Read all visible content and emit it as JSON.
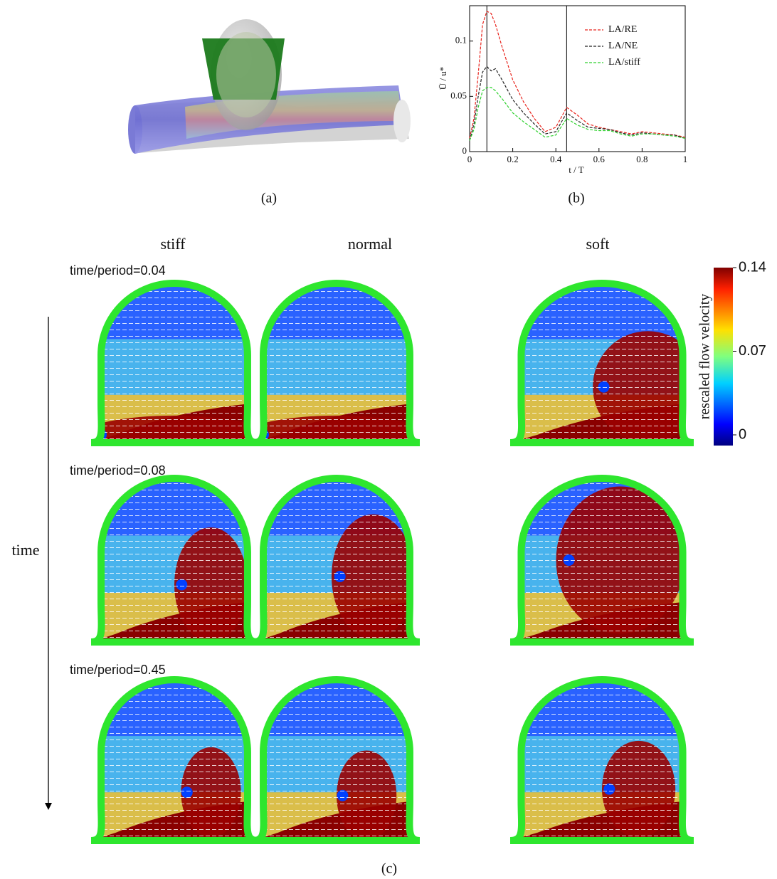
{
  "panel_labels": [
    "(a)",
    "(b)",
    "(c)"
  ],
  "chart_data": {
    "type": "line",
    "x": [
      0,
      0.02,
      0.04,
      0.06,
      0.08,
      0.1,
      0.12,
      0.15,
      0.2,
      0.25,
      0.3,
      0.35,
      0.4,
      0.45,
      0.5,
      0.55,
      0.6,
      0.65,
      0.7,
      0.75,
      0.8,
      0.85,
      0.9,
      0.95,
      1
    ],
    "series": [
      {
        "name": "LA/RE",
        "color": "#e8231c",
        "values": [
          0.012,
          0.03,
          0.07,
          0.115,
          0.127,
          0.125,
          0.115,
          0.095,
          0.065,
          0.045,
          0.03,
          0.018,
          0.022,
          0.04,
          0.033,
          0.025,
          0.022,
          0.02,
          0.018,
          0.016,
          0.018,
          0.017,
          0.016,
          0.015,
          0.013
        ]
      },
      {
        "name": "LA/NE",
        "color": "#222222",
        "values": [
          0.01,
          0.025,
          0.05,
          0.072,
          0.077,
          0.073,
          0.075,
          0.065,
          0.047,
          0.035,
          0.025,
          0.016,
          0.018,
          0.035,
          0.028,
          0.022,
          0.021,
          0.02,
          0.017,
          0.015,
          0.017,
          0.016,
          0.015,
          0.015,
          0.012
        ]
      },
      {
        "name": "LA/stiff",
        "color": "#2fd12f",
        "values": [
          0.01,
          0.02,
          0.04,
          0.055,
          0.058,
          0.058,
          0.055,
          0.048,
          0.035,
          0.027,
          0.02,
          0.013,
          0.015,
          0.03,
          0.024,
          0.02,
          0.019,
          0.019,
          0.016,
          0.014,
          0.016,
          0.016,
          0.015,
          0.014,
          0.012
        ]
      }
    ],
    "xlim": [
      0,
      1
    ],
    "ylim": [
      0,
      0.132
    ],
    "xticks": [
      0,
      0.2,
      0.4,
      0.6,
      0.8,
      1
    ],
    "yticks": [
      0,
      0.05,
      0.1
    ],
    "xlabel": "t / T",
    "ylabel": "Ū / u*",
    "vlines": [
      0.08,
      0.45
    ],
    "legend": "upper right"
  },
  "flow_panel": {
    "columns": [
      "stiff",
      "normal",
      "soft"
    ],
    "rows": [
      "time/period=0.04",
      "time/period=0.08",
      "time/period=0.45"
    ],
    "axis_label": "time",
    "colorbar": {
      "label": "rescaled flow velocity",
      "lim": [
        0,
        0.14
      ],
      "ticks": [
        0,
        0.07,
        0.14
      ]
    }
  }
}
